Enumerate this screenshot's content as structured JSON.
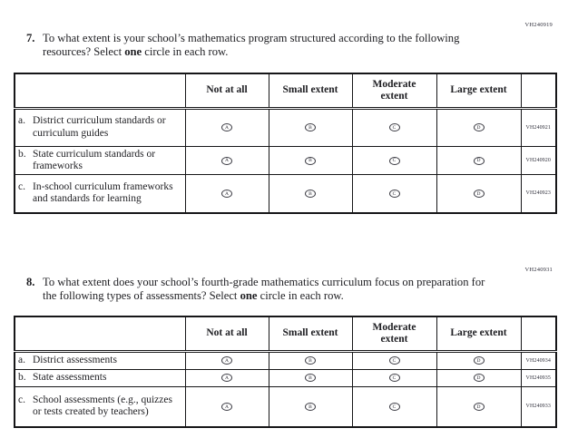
{
  "page": {
    "background": "#ffffff",
    "text_color": "#1e1e22",
    "border_color": "#161618",
    "code_color": "#2e2e3a"
  },
  "questions": [
    {
      "code": "VH240919",
      "number": "7.",
      "text_start": "To what extent is your school’s mathematics program structured according to the following resources? Select ",
      "text_bold": "one",
      "text_end": " circle in each row.",
      "table": {
        "headers": [
          "Not at all",
          "Small extent",
          "Moderate extent",
          "Large extent"
        ],
        "rows": [
          {
            "letter": "a.",
            "label": "District curriculum standards or curriculum guides",
            "options": [
              "A",
              "B",
              "C",
              "D"
            ],
            "code": "VH240921"
          },
          {
            "letter": "b.",
            "label": "State curriculum standards or frameworks",
            "options": [
              "A",
              "B",
              "C",
              "D"
            ],
            "code": "VH240920"
          },
          {
            "letter": "c.",
            "label": "In-school curriculum frameworks and standards for learning",
            "options": [
              "A",
              "B",
              "C",
              "D"
            ],
            "code": "VH240923"
          }
        ]
      }
    },
    {
      "code": "VH240931",
      "number": "8.",
      "text_start": "To what extent does your school’s fourth-grade mathematics curriculum focus on preparation for the following types of assessments? Select ",
      "text_bold": "one",
      "text_end": " circle in each row.",
      "table": {
        "headers": [
          "Not at all",
          "Small extent",
          "Moderate extent",
          "Large extent"
        ],
        "rows": [
          {
            "letter": "a.",
            "label": "District assessments",
            "options": [
              "A",
              "B",
              "C",
              "D"
            ],
            "code": "VH240934"
          },
          {
            "letter": "b.",
            "label": "State assessments",
            "options": [
              "A",
              "B",
              "C",
              "D"
            ],
            "code": "VH240935"
          },
          {
            "letter": "c.",
            "label": "School assessments (e.g., quizzes or tests created by teachers)",
            "options": [
              "A",
              "B",
              "C",
              "D"
            ],
            "code": "VH240933"
          }
        ]
      }
    }
  ]
}
